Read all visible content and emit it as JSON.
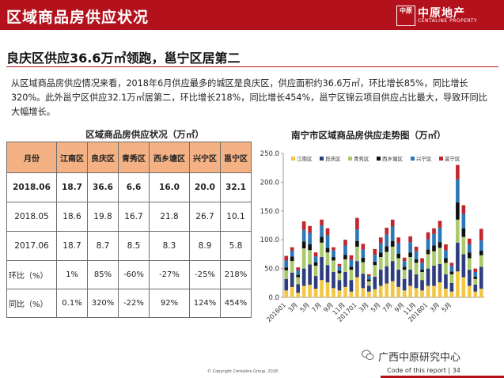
{
  "header": {
    "title": "区域商品房供应状况",
    "logo_seal": "中原",
    "logo_name": "中原地产",
    "logo_sub": "CENTALINE PROPERTY",
    "colors": {
      "header_bg": "#b3121d"
    }
  },
  "headline": "良庆区供应36.6万㎡领跑，邕宁区居第二",
  "body_text": "从区域商品房供应情况来看，2018年6月供应最多的城区是良庆区，供应面积约36.6万㎡，环比增长85%，同比增长320%。此外邕宁区供应32.1万㎡居第二，环比增长218%，同比增长454%，邕宁区锦云项目供应占比最大，导致环同比大幅增长。",
  "table": {
    "title": "区域商品房供应状况（万㎡）",
    "headers": [
      "月份",
      "江南区",
      "良庆区",
      "青秀区",
      "西乡塘区",
      "兴宁区",
      "邕宁区"
    ],
    "rows": [
      [
        "2018.06",
        "18.7",
        "36.6",
        "6.6",
        "16.0",
        "20.0",
        "32.1"
      ],
      [
        "2018.05",
        "18.6",
        "19.8",
        "16.7",
        "21.8",
        "26.7",
        "10.1"
      ],
      [
        "2017.06",
        "18.7",
        "8.7",
        "8.5",
        "8.3",
        "8.9",
        "5.8"
      ],
      [
        "环比（%）",
        "1%",
        "85%",
        "-60%",
        "-27%",
        "-25%",
        "218%"
      ],
      [
        "同比（%）",
        "0.1%",
        "320%",
        "-22%",
        "92%",
        "124%",
        "454%"
      ]
    ],
    "colors": {
      "header_bg": "#f4b183"
    }
  },
  "chart_data": {
    "type": "bar",
    "stacked": true,
    "title": "南宁市区域商品房供应走势图（万㎡）",
    "ylim": [
      0,
      250
    ],
    "yticks": [
      "0.0",
      "50.0",
      "100.0",
      "150.0",
      "200.0",
      "250.0"
    ],
    "xtick_labels": [
      "201601",
      "3月",
      "5月",
      "7月",
      "9月",
      "11月",
      "201701",
      "3月",
      "5月",
      "7月",
      "9月",
      "11月",
      "201801",
      "3月",
      "5月"
    ],
    "legend_position": "top",
    "series": [
      {
        "name": "江南区",
        "color": "#f2c744",
        "values": [
          12,
          18,
          8,
          20,
          22,
          15,
          30,
          26,
          16,
          12,
          18,
          10,
          35,
          16,
          10,
          14,
          20,
          24,
          28,
          18,
          12,
          20,
          16,
          12,
          20,
          20,
          26,
          15,
          10,
          45,
          35,
          20,
          10,
          15
        ]
      },
      {
        "name": "良庆区",
        "color": "#2e3d7e",
        "values": [
          20,
          25,
          15,
          30,
          35,
          22,
          40,
          30,
          28,
          18,
          26,
          20,
          28,
          25,
          10,
          22,
          28,
          30,
          35,
          30,
          20,
          28,
          24,
          18,
          30,
          35,
          32,
          25,
          15,
          50,
          40,
          28,
          12,
          38
        ]
      },
      {
        "name": "青秀区",
        "color": "#a9c96b",
        "values": [
          15,
          20,
          12,
          35,
          25,
          18,
          25,
          22,
          20,
          12,
          22,
          18,
          25,
          20,
          8,
          20,
          22,
          25,
          25,
          20,
          16,
          22,
          20,
          14,
          25,
          25,
          28,
          20,
          15,
          40,
          30,
          20,
          10,
          20
        ]
      },
      {
        "name": "西乡塘区",
        "color": "#111111",
        "values": [
          5,
          8,
          4,
          12,
          10,
          6,
          10,
          8,
          6,
          4,
          8,
          5,
          10,
          8,
          3,
          6,
          8,
          10,
          10,
          8,
          5,
          8,
          6,
          4,
          8,
          10,
          10,
          8,
          5,
          30,
          15,
          10,
          4,
          8
        ]
      },
      {
        "name": "兴宁区",
        "color": "#2b78b8",
        "values": [
          12,
          10,
          8,
          20,
          20,
          10,
          20,
          22,
          12,
          8,
          16,
          12,
          20,
          14,
          6,
          12,
          16,
          20,
          25,
          18,
          10,
          18,
          14,
          12,
          18,
          20,
          25,
          14,
          10,
          40,
          25,
          14,
          8,
          18
        ]
      },
      {
        "name": "邕宁区",
        "color": "#c0272d",
        "values": [
          8,
          6,
          5,
          15,
          12,
          7,
          10,
          12,
          5,
          4,
          10,
          8,
          20,
          10,
          3,
          10,
          10,
          12,
          12,
          10,
          6,
          10,
          8,
          8,
          12,
          10,
          12,
          10,
          5,
          25,
          15,
          10,
          6,
          20
        ]
      }
    ]
  },
  "watermark": "广西中原研究中心",
  "copyright": "© Copyright Centaline Group, 2018",
  "footer_code": "Code of this report  |  34"
}
